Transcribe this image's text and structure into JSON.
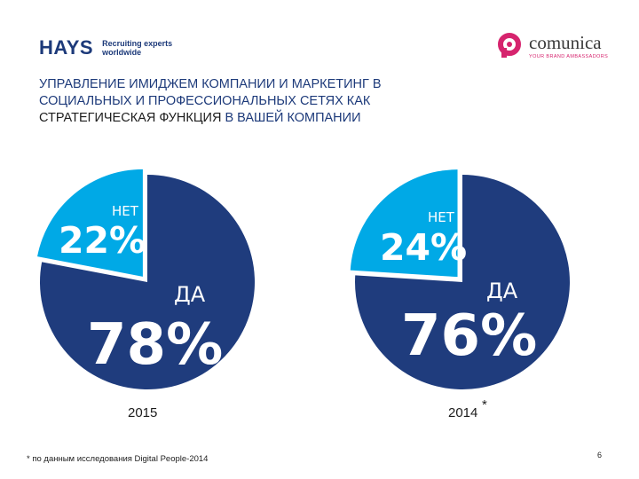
{
  "header": {
    "hays_brand": "HAYS",
    "hays_tagline_1": "Recruiting experts",
    "hays_tagline_2": "worldwide",
    "comunica_brand": "comunica",
    "comunica_tagline": "YOUR BRAND AMBASSADORS"
  },
  "title": {
    "line1": "УПРАВЛЕНИЕ ИМИДЖЕМ КОМПАНИИ И МАРКЕТИНГ В",
    "line2": "СОЦИАЛЬНЫХ И ПРОФЕССИОНАЛЬНЫХ СЕТЯХ КАК",
    "line3_dark": "СТРАТЕГИЧЕСКАЯ ФУНКЦИЯ",
    "line3_rest": " В ВАШЕЙ КОМПАНИИ"
  },
  "colors": {
    "yes": "#1f3c7d",
    "no": "#00a9e6",
    "title": "#1d3a7a"
  },
  "chart_data": [
    {
      "type": "pie",
      "title": "2015",
      "slices": [
        {
          "label": "НЕТ",
          "value": 22,
          "display": "22%"
        },
        {
          "label": "ДА",
          "value": 78,
          "display": "78%"
        }
      ]
    },
    {
      "type": "pie",
      "title": "2014",
      "title_mark": "*",
      "slices": [
        {
          "label": "НЕТ",
          "value": 24,
          "display": "24%"
        },
        {
          "label": "ДА",
          "value": 76,
          "display": "76%"
        }
      ]
    }
  ],
  "footer": {
    "footnote": "* по данным исследования Digital People-2014",
    "page_number": "6"
  }
}
